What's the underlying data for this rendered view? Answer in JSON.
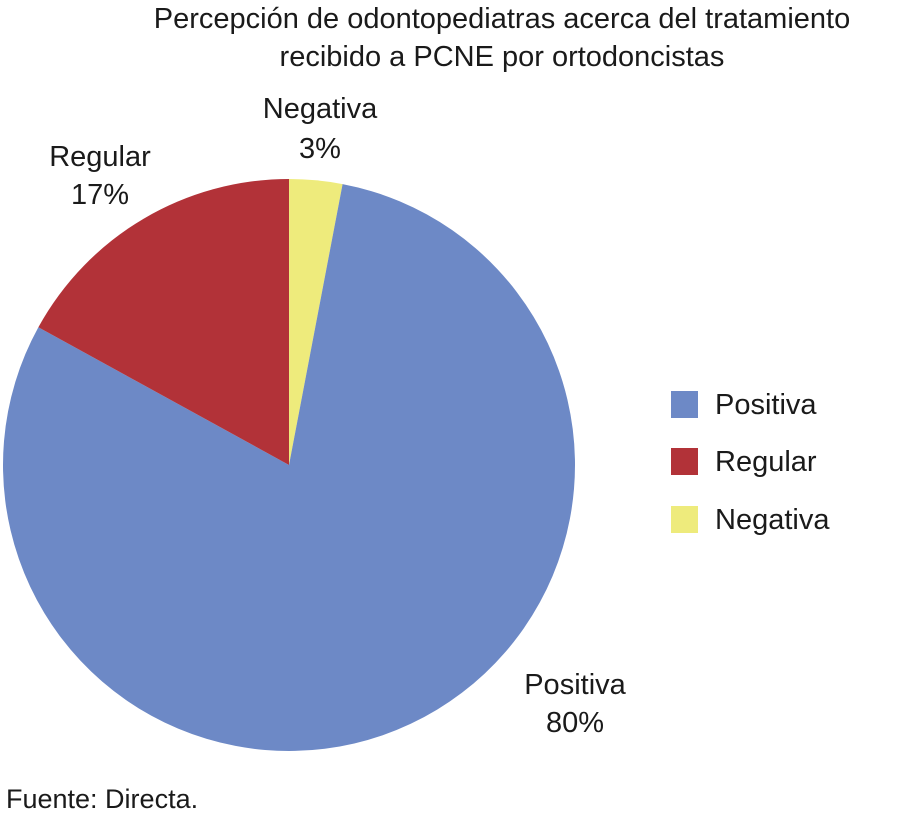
{
  "chart_data": {
    "type": "pie",
    "title": "Percepción de odontopediatras acerca del tratamiento recibido a PCNE por ortodoncistas",
    "title_lines": [
      "Percepción de odontopediatras acerca del tratamiento",
      "recibido a PCNE por ortodoncistas"
    ],
    "slices": [
      {
        "label": "Positiva",
        "value": 80,
        "value_label": "80%",
        "color": "#6d89c6"
      },
      {
        "label": "Regular",
        "value": 17,
        "value_label": "17%",
        "color": "#b23238"
      },
      {
        "label": "Negativa",
        "value": 3,
        "value_label": "3%",
        "color": "#eeeb7c"
      }
    ],
    "legend": {
      "placement": "right",
      "entries": [
        "Positiva",
        "Regular",
        "Negativa"
      ]
    },
    "source": "Fuente: Directa."
  }
}
